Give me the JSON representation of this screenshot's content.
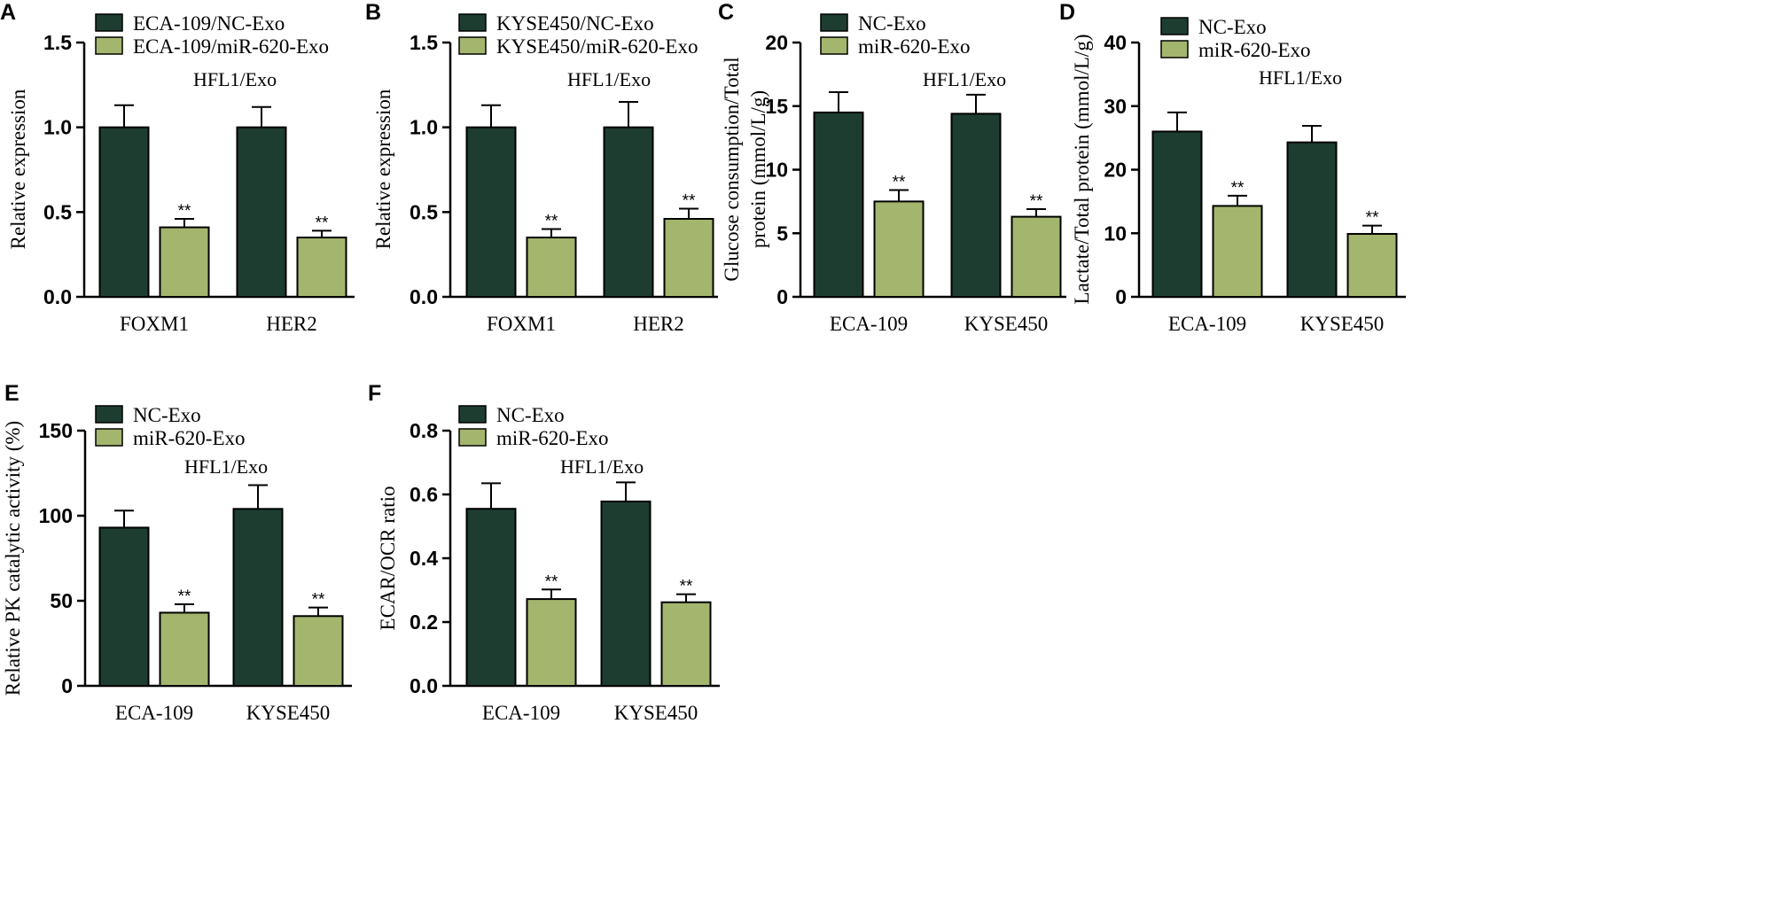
{
  "colors": {
    "series1": "#1e3d31",
    "series2": "#a4b56e"
  },
  "chart_data": [
    {
      "panel": "A",
      "type": "bar",
      "legend": [
        "ECA-109/NC-Exo",
        "ECA-109/miR-620-Exo"
      ],
      "annotation": "HFL1/Exo",
      "ylabel": "Relative expression",
      "yticks": [
        "0.0",
        "0.5",
        "1.0",
        "1.5"
      ],
      "ylim": [
        0,
        1.5
      ],
      "categories": [
        "FOXM1",
        "HER2"
      ],
      "series": [
        {
          "name": "ECA-109/NC-Exo",
          "values": [
            1.0,
            1.0
          ],
          "errors": [
            0.13,
            0.12
          ]
        },
        {
          "name": "ECA-109/miR-620-Exo",
          "values": [
            0.41,
            0.35
          ],
          "errors": [
            0.05,
            0.04
          ]
        }
      ],
      "significance": [
        "**",
        "**"
      ]
    },
    {
      "panel": "B",
      "type": "bar",
      "legend": [
        "KYSE450/NC-Exo",
        "KYSE450/miR-620-Exo"
      ],
      "annotation": "HFL1/Exo",
      "ylabel": "Relative expression",
      "yticks": [
        "0.0",
        "0.5",
        "1.0",
        "1.5"
      ],
      "ylim": [
        0,
        1.5
      ],
      "categories": [
        "FOXM1",
        "HER2"
      ],
      "series": [
        {
          "name": "KYSE450/NC-Exo",
          "values": [
            1.0,
            1.0
          ],
          "errors": [
            0.13,
            0.15
          ]
        },
        {
          "name": "KYSE450/miR-620-Exo",
          "values": [
            0.35,
            0.46
          ],
          "errors": [
            0.05,
            0.06
          ]
        }
      ],
      "significance": [
        "**",
        "**"
      ]
    },
    {
      "panel": "C",
      "type": "bar",
      "legend": [
        "NC-Exo",
        "miR-620-Exo"
      ],
      "annotation": "HFL1/Exo",
      "ylabel": "Glucose consumption/Total protein (mmol/L/g)",
      "ylabel_lines": [
        "Glucose consumption/Total",
        "protein (mmol/L/g)"
      ],
      "yticks": [
        "0",
        "5",
        "10",
        "15",
        "20"
      ],
      "ylim": [
        0,
        20
      ],
      "categories": [
        "ECA-109",
        "KYSE450"
      ],
      "series": [
        {
          "name": "NC-Exo",
          "values": [
            14.5,
            14.4
          ],
          "errors": [
            1.6,
            1.5
          ]
        },
        {
          "name": "miR-620-Exo",
          "values": [
            7.5,
            6.3
          ],
          "errors": [
            0.9,
            0.6
          ]
        }
      ],
      "significance": [
        "**",
        "**"
      ]
    },
    {
      "panel": "D",
      "type": "bar",
      "legend": [
        "NC-Exo",
        "miR-620-Exo"
      ],
      "annotation": "HFL1/Exo",
      "ylabel": "Lactate/Total protein (mmol/L/g)",
      "yticks": [
        "0",
        "10",
        "20",
        "30",
        "40"
      ],
      "ylim": [
        0,
        40
      ],
      "categories": [
        "ECA-109",
        "KYSE450"
      ],
      "series": [
        {
          "name": "NC-Exo",
          "values": [
            26.0,
            24.3
          ],
          "errors": [
            3.0,
            2.6
          ]
        },
        {
          "name": "miR-620-Exo",
          "values": [
            14.3,
            9.9
          ],
          "errors": [
            1.6,
            1.3
          ]
        }
      ],
      "significance": [
        "**",
        "**"
      ]
    },
    {
      "panel": "E",
      "type": "bar",
      "legend": [
        "NC-Exo",
        "miR-620-Exo"
      ],
      "annotation": "HFL1/Exo",
      "ylabel": "Relative PK catalytic activity (%)",
      "yticks": [
        "0",
        "50",
        "100",
        "150"
      ],
      "ylim": [
        0,
        150
      ],
      "categories": [
        "ECA-109",
        "KYSE450"
      ],
      "series": [
        {
          "name": "NC-Exo",
          "values": [
            93,
            104
          ],
          "errors": [
            10,
            14
          ]
        },
        {
          "name": "miR-620-Exo",
          "values": [
            43,
            41
          ],
          "errors": [
            5,
            5
          ]
        }
      ],
      "significance": [
        "**",
        "**"
      ]
    },
    {
      "panel": "F",
      "type": "bar",
      "legend": [
        "NC-Exo",
        "miR-620-Exo"
      ],
      "annotation": "HFL1/Exo",
      "ylabel": "ECAR/OCR ratio",
      "yticks": [
        "0.0",
        "0.2",
        "0.4",
        "0.6",
        "0.8"
      ],
      "ylim": [
        0,
        0.8
      ],
      "categories": [
        "ECA-109",
        "KYSE450"
      ],
      "series": [
        {
          "name": "NC-Exo",
          "values": [
            0.555,
            0.578
          ],
          "errors": [
            0.08,
            0.06
          ]
        },
        {
          "name": "miR-620-Exo",
          "values": [
            0.272,
            0.262
          ],
          "errors": [
            0.03,
            0.025
          ]
        }
      ],
      "significance": [
        "**",
        "**"
      ]
    }
  ]
}
